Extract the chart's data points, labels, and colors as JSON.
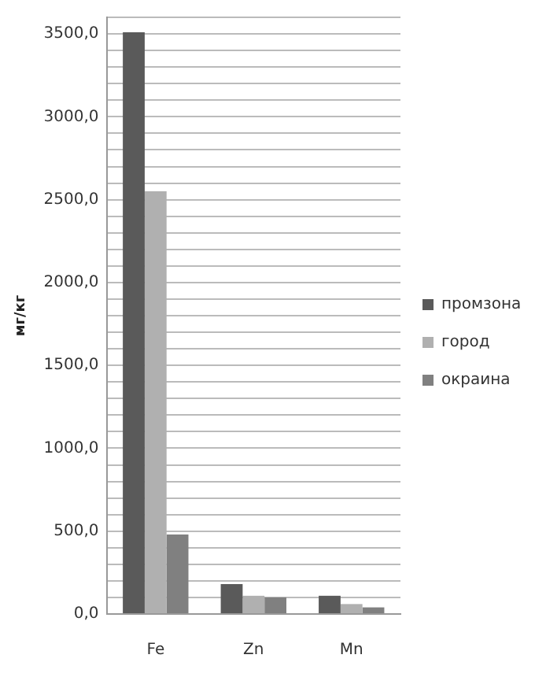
{
  "chart_data": {
    "type": "bar",
    "ylabel": "мг/кг",
    "categories": [
      "Fe",
      "Zn",
      "Mn"
    ],
    "series": [
      {
        "name": "промзона",
        "color": "#5a5a5a",
        "values": [
          3510,
          180,
          110
        ]
      },
      {
        "name": "город",
        "color": "#b0b0b0",
        "values": [
          2550,
          110,
          60
        ]
      },
      {
        "name": "окраина",
        "color": "#808080",
        "values": [
          480,
          100,
          40
        ]
      }
    ],
    "ylim": [
      0,
      3600
    ],
    "yticks": [
      {
        "value": 0,
        "label": "0,0"
      },
      {
        "value": 100,
        "label": null
      },
      {
        "value": 200,
        "label": null
      },
      {
        "value": 300,
        "label": null
      },
      {
        "value": 400,
        "label": null
      },
      {
        "value": 500,
        "label": "500,0"
      },
      {
        "value": 600,
        "label": null
      },
      {
        "value": 700,
        "label": null
      },
      {
        "value": 800,
        "label": null
      },
      {
        "value": 900,
        "label": null
      },
      {
        "value": 1000,
        "label": "1000,0"
      },
      {
        "value": 1100,
        "label": null
      },
      {
        "value": 1200,
        "label": null
      },
      {
        "value": 1300,
        "label": null
      },
      {
        "value": 1400,
        "label": null
      },
      {
        "value": 1500,
        "label": "1500,0"
      },
      {
        "value": 1600,
        "label": null
      },
      {
        "value": 1700,
        "label": null
      },
      {
        "value": 1800,
        "label": null
      },
      {
        "value": 1900,
        "label": null
      },
      {
        "value": 2000,
        "label": "2000,0"
      },
      {
        "value": 2100,
        "label": null
      },
      {
        "value": 2200,
        "label": null
      },
      {
        "value": 2300,
        "label": null
      },
      {
        "value": 2400,
        "label": null
      },
      {
        "value": 2500,
        "label": "2500,0"
      },
      {
        "value": 2600,
        "label": null
      },
      {
        "value": 2700,
        "label": null
      },
      {
        "value": 2800,
        "label": null
      },
      {
        "value": 2900,
        "label": null
      },
      {
        "value": 3000,
        "label": "3000,0"
      },
      {
        "value": 3100,
        "label": null
      },
      {
        "value": 3200,
        "label": null
      },
      {
        "value": 3300,
        "label": null
      },
      {
        "value": 3400,
        "label": null
      },
      {
        "value": 3500,
        "label": "3500,0"
      },
      {
        "value": 3600,
        "label": null
      }
    ],
    "grid": "y",
    "legend": "right"
  }
}
